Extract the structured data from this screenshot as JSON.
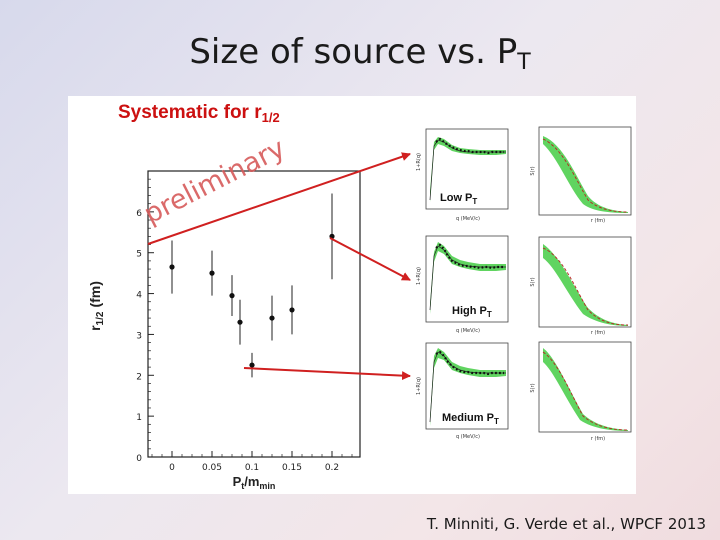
{
  "slide": {
    "title": "Size of source vs. P",
    "title_sub": "T",
    "citation": "T. Minniti, G. Verde et al., WPCF 2013"
  },
  "figure": {
    "heading_main": "Systematic for r",
    "heading_sub": "1/2",
    "watermark": "preliminary",
    "heading_color": "#cc1010",
    "arrow_color": "#d02020",
    "band_color": "#44cc44"
  },
  "chart_data": {
    "type": "scatter",
    "xlabel": "P",
    "xlabel_sub": "t",
    "xlabel_tail": "/m",
    "xlabel_tail_sub": "min",
    "ylabel": "r",
    "ylabel_sub": "1/2",
    "ylabel_unit": "(fm)",
    "xlim": [
      -0.03,
      0.235
    ],
    "ylim": [
      0,
      7
    ],
    "xticks": [
      "0",
      "0.05",
      "0.1",
      "0.15",
      "0.2"
    ],
    "xtick_values": [
      0,
      0.05,
      0.1,
      0.15,
      0.2
    ],
    "yticks": [
      "0",
      "1",
      "2",
      "3",
      "4",
      "5",
      "6"
    ],
    "points": [
      {
        "x": 0.0,
        "y": 4.65,
        "err": 0.65
      },
      {
        "x": 0.05,
        "y": 4.5,
        "err": 0.55
      },
      {
        "x": 0.075,
        "y": 3.95,
        "err": 0.5
      },
      {
        "x": 0.085,
        "y": 3.3,
        "err": 0.55
      },
      {
        "x": 0.1,
        "y": 2.25,
        "err": 0.3
      },
      {
        "x": 0.125,
        "y": 3.4,
        "err": 0.55
      },
      {
        "x": 0.15,
        "y": 3.6,
        "err": 0.6
      },
      {
        "x": 0.2,
        "y": 5.4,
        "err": 1.05
      }
    ],
    "insets": [
      {
        "label": "Low P",
        "label_sub": "T",
        "left_ylabel": "1+R(q)",
        "left_xlabel": "q (MeV/c)",
        "right_ylabel": "S(r)",
        "right_xlabel": "r (fm)"
      },
      {
        "label": "High P",
        "label_sub": "T",
        "left_ylabel": "1+R(q)",
        "left_xlabel": "q (MeV/c)",
        "right_ylabel": "S(r)",
        "right_xlabel": "r (fm)"
      },
      {
        "label": "Medium P",
        "label_sub": "T",
        "left_ylabel": "1+R(q)",
        "left_xlabel": "q (MeV/c)",
        "right_ylabel": "S(r)",
        "right_xlabel": "r (fm)"
      }
    ]
  }
}
